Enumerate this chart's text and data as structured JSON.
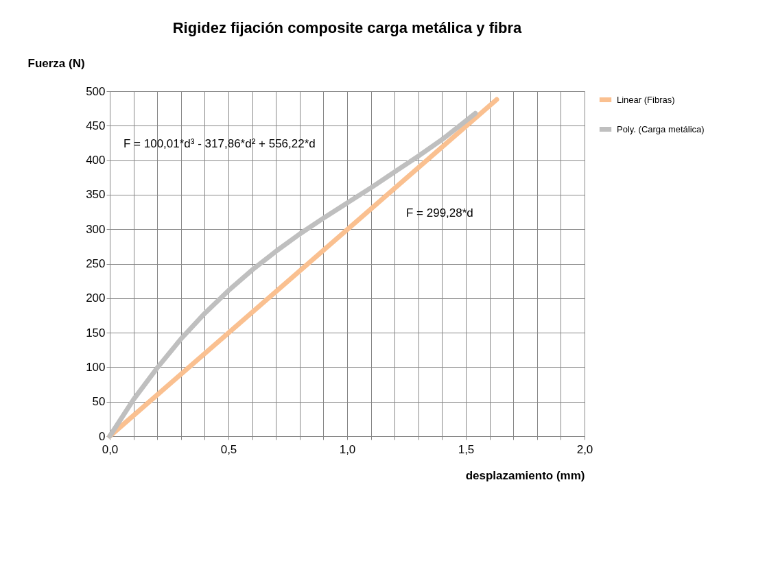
{
  "chart_data": {
    "type": "line",
    "title": "Rigidez fijación composite carga metálica y fibra",
    "xlabel": "desplazamiento (mm)",
    "ylabel": "Fuerza (N)",
    "series": [
      {
        "name": "Linear (Fibras)",
        "color": "#fac090",
        "x": [
          0,
          1.63
        ],
        "values": [
          0,
          488
        ]
      },
      {
        "name": "Poly. (Carga metálica)",
        "color": "#bfbfbf",
        "x": [
          0,
          0.1,
          0.2,
          0.3,
          0.4,
          0.5,
          0.6,
          0.7,
          0.8,
          0.9,
          1.0,
          1.1,
          1.2,
          1.3,
          1.4,
          1.5,
          1.54
        ],
        "values": [
          0,
          53,
          99,
          141,
          178,
          211,
          241,
          268,
          293,
          316,
          338,
          360,
          383,
          406,
          430,
          457,
          468
        ]
      }
    ],
    "xlim": [
      0,
      2
    ],
    "xticks": [
      {
        "value": 0,
        "label": "0,0"
      },
      {
        "value": 0.1,
        "label": null
      },
      {
        "value": 0.2,
        "label": null
      },
      {
        "value": 0.3,
        "label": null
      },
      {
        "value": 0.4,
        "label": null
      },
      {
        "value": 0.5,
        "label": "0,5"
      },
      {
        "value": 0.6,
        "label": null
      },
      {
        "value": 0.7,
        "label": null
      },
      {
        "value": 0.8,
        "label": null
      },
      {
        "value": 0.9,
        "label": null
      },
      {
        "value": 1.0,
        "label": "1,0"
      },
      {
        "value": 1.1,
        "label": null
      },
      {
        "value": 1.2,
        "label": null
      },
      {
        "value": 1.3,
        "label": null
      },
      {
        "value": 1.4,
        "label": null
      },
      {
        "value": 1.5,
        "label": "1,5"
      },
      {
        "value": 1.6,
        "label": null
      },
      {
        "value": 1.7,
        "label": null
      },
      {
        "value": 1.8,
        "label": null
      },
      {
        "value": 1.9,
        "label": null
      },
      {
        "value": 2.0,
        "label": "2,0"
      }
    ],
    "ylim": [
      0,
      500
    ],
    "yticks": [
      0,
      50,
      100,
      150,
      200,
      250,
      300,
      350,
      400,
      450,
      500
    ],
    "grid": true,
    "legend": "right",
    "line_style": "solid",
    "annotations": [
      "F = 100,01*d³ - 317,86*d² + 556,22*d",
      "F = 299,28*d"
    ]
  }
}
